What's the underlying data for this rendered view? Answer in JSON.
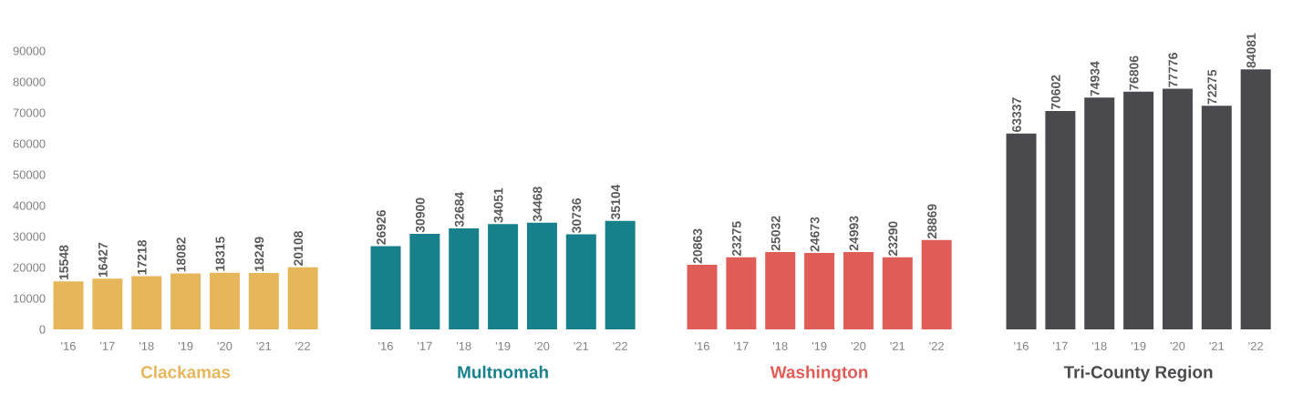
{
  "chart_data": [
    {
      "type": "bar",
      "xlabel": "Clackamas",
      "categories": [
        "'16",
        "'17",
        "'18",
        "'19",
        "'20",
        "'21",
        "'22"
      ],
      "values": [
        15548,
        16427,
        17218,
        18082,
        18315,
        18249,
        20108
      ],
      "color": "#e6b65a",
      "ylim": [
        0,
        90000
      ],
      "yticks": [
        0,
        10000,
        20000,
        30000,
        40000,
        50000,
        60000,
        70000,
        80000,
        90000
      ],
      "data_labels": true
    },
    {
      "type": "bar",
      "xlabel": "Multnomah",
      "categories": [
        "'16",
        "'17",
        "'18",
        "'19",
        "'20",
        "'21",
        "'22"
      ],
      "values": [
        26926,
        30900,
        32684,
        34051,
        34468,
        30736,
        35104
      ],
      "color": "#17808a",
      "ylim": [
        0,
        90000
      ],
      "tick_labels": "x",
      "data_labels": true
    },
    {
      "type": "bar",
      "xlabel": "Washington",
      "categories": [
        "'16",
        "'17",
        "'18",
        "'19",
        "'20",
        "'21",
        "'22"
      ],
      "values": [
        20863,
        23275,
        25032,
        24673,
        24993,
        23290,
        28869
      ],
      "color": "#e05c57",
      "ylim": [
        0,
        90000
      ],
      "tick_labels": "x",
      "data_labels": true
    },
    {
      "type": "bar",
      "xlabel": "Tri-County Region",
      "categories": [
        "'16",
        "'17",
        "'18",
        "'19",
        "'20",
        "'21",
        "'22"
      ],
      "values": [
        63337,
        70602,
        74934,
        76806,
        77776,
        72275,
        84081
      ],
      "color": "#4a4a4c",
      "ylim": [
        0,
        90000
      ],
      "tick_labels": "x",
      "data_labels": true
    }
  ]
}
